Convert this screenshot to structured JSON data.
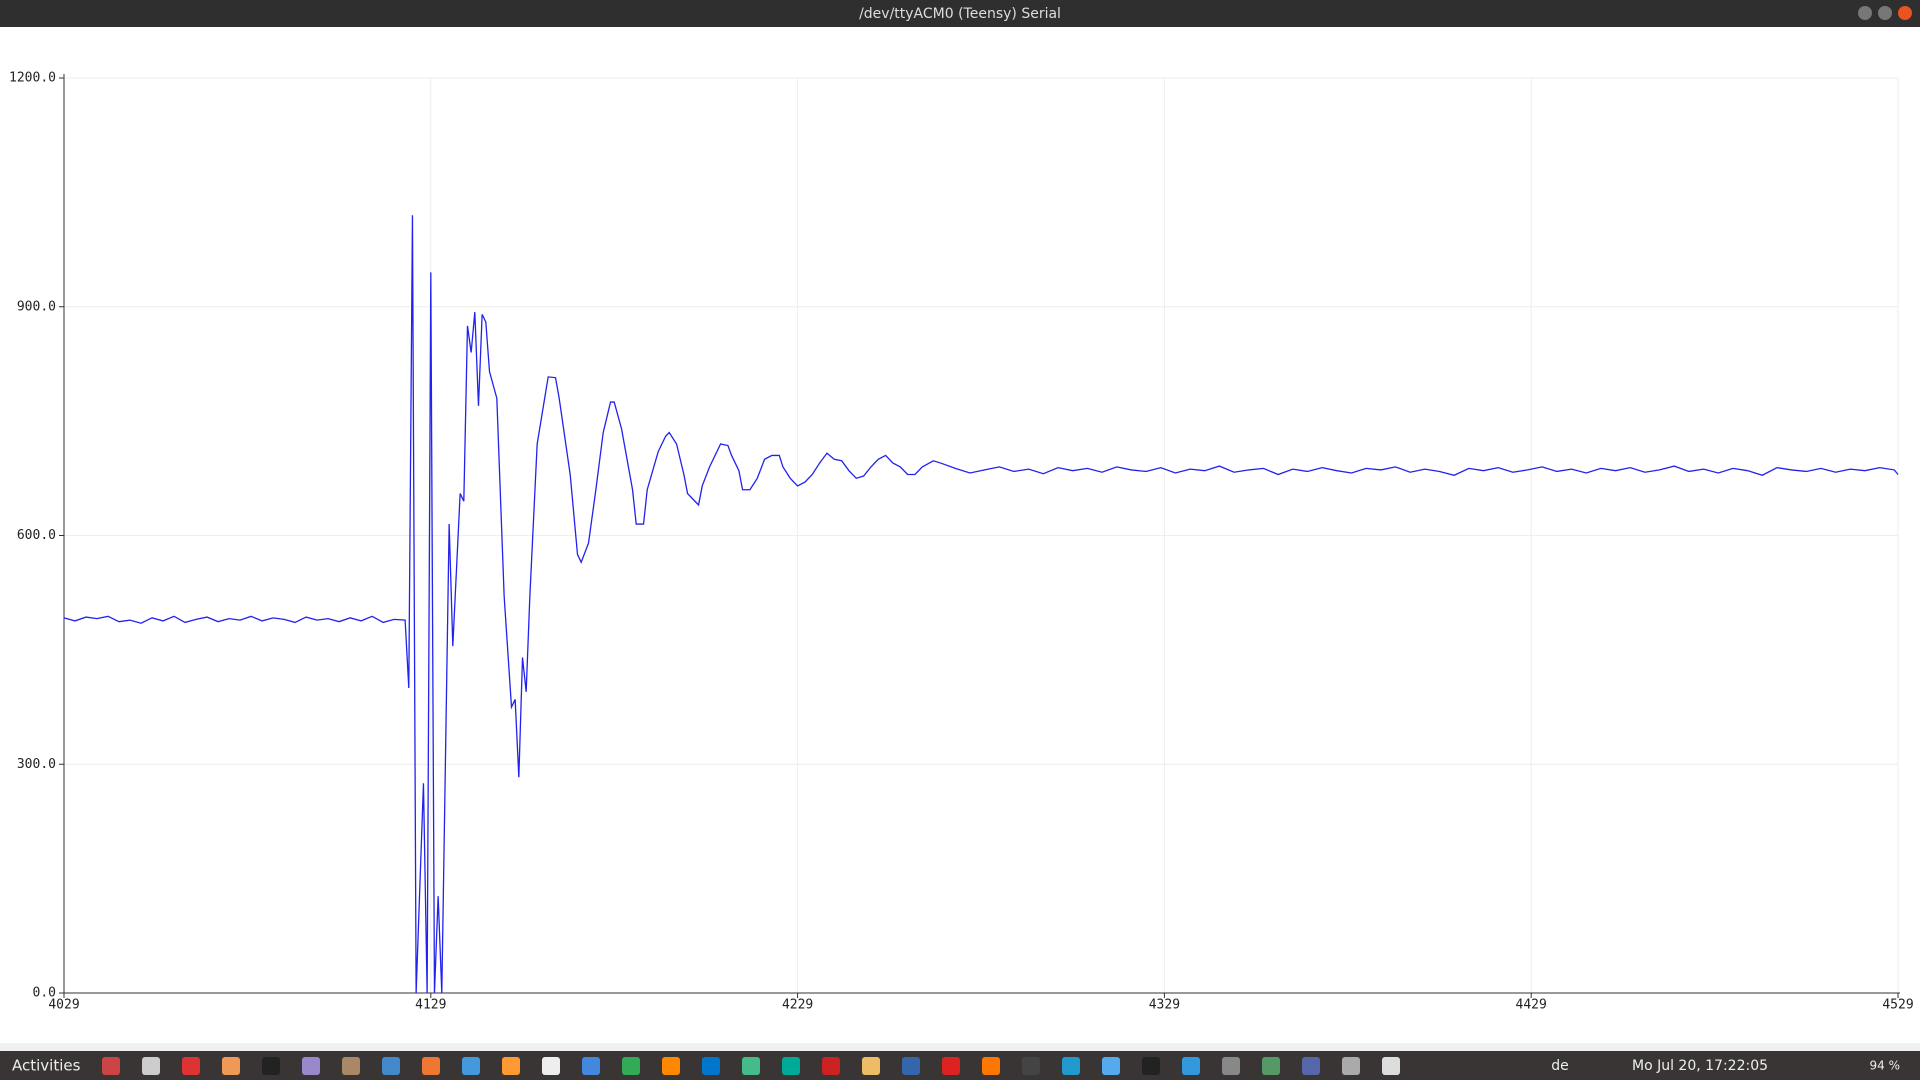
{
  "window": {
    "title": "/dev/ttyACM0 (Teensy) Serial"
  },
  "taskbar": {
    "activities": "Activities",
    "keyboard": "de",
    "clock": "Mo Jul 20, 17:22:05",
    "battery": "94 %"
  },
  "chart_data": {
    "type": "line",
    "x": [
      4029,
      4032,
      4035,
      4038,
      4041,
      4044,
      4047,
      4050,
      4053,
      4056,
      4059,
      4062,
      4065,
      4068,
      4071,
      4074,
      4077,
      4080,
      4083,
      4086,
      4089,
      4092,
      4095,
      4098,
      4101,
      4104,
      4107,
      4110,
      4113,
      4116,
      4119,
      4122,
      4123,
      4124,
      4125,
      4127,
      4128,
      4129,
      4130,
      4131,
      4132,
      4134,
      4135,
      4137,
      4138,
      4139,
      4140,
      4141,
      4142,
      4143,
      4144,
      4145,
      4147,
      4149,
      4151,
      4152,
      4153,
      4154,
      4155,
      4156,
      4158,
      4161,
      4163,
      4164,
      4167,
      4169,
      4170,
      4172,
      4174,
      4176,
      4178,
      4179,
      4181,
      4184,
      4185,
      4187,
      4188,
      4191,
      4193,
      4194,
      4196,
      4198,
      4199,
      4200,
      4202,
      4203,
      4205,
      4206,
      4208,
      4210,
      4211,
      4213,
      4214,
      4216,
      4218,
      4220,
      4222,
      4224,
      4225,
      4227,
      4229,
      4231,
      4233,
      4235,
      4237,
      4239,
      4241,
      4243,
      4245,
      4247,
      4249,
      4251,
      4253,
      4255,
      4257,
      4259,
      4261,
      4263,
      4266,
      4268,
      4272,
      4276,
      4280,
      4284,
      4288,
      4292,
      4296,
      4300,
      4304,
      4308,
      4312,
      4316,
      4320,
      4324,
      4328,
      4332,
      4336,
      4340,
      4344,
      4348,
      4352,
      4356,
      4360,
      4364,
      4368,
      4372,
      4376,
      4380,
      4384,
      4388,
      4392,
      4396,
      4400,
      4404,
      4408,
      4412,
      4416,
      4420,
      4424,
      4428,
      4432,
      4436,
      4440,
      4444,
      4448,
      4452,
      4456,
      4460,
      4464,
      4468,
      4472,
      4476,
      4480,
      4484,
      4488,
      4492,
      4496,
      4500,
      4504,
      4508,
      4512,
      4516,
      4520,
      4524,
      4528,
      4529
    ],
    "series": [
      {
        "color": "#2222ee",
        "values": [
          492,
          488,
          493,
          491,
          494,
          487,
          489,
          485,
          492,
          488,
          494,
          486,
          490,
          493,
          487,
          491,
          489,
          494,
          488,
          492,
          490,
          486,
          493,
          489,
          491,
          487,
          492,
          488,
          494,
          486,
          490,
          489,
          400,
          1020,
          0,
          275,
          0,
          945,
          0,
          127,
          0,
          615,
          455,
          655,
          645,
          875,
          840,
          893,
          770,
          890,
          880,
          815,
          780,
          520,
          375,
          385,
          283,
          440,
          395,
          520,
          720,
          808,
          807,
          780,
          680,
          575,
          565,
          590,
          660,
          735,
          775,
          775,
          740,
          660,
          615,
          615,
          660,
          710,
          730,
          735,
          720,
          680,
          655,
          650,
          640,
          665,
          690,
          700,
          720,
          718,
          705,
          685,
          660,
          660,
          675,
          700,
          705,
          705,
          690,
          675,
          665,
          670,
          680,
          695,
          708,
          700,
          698,
          685,
          675,
          678,
          690,
          700,
          705,
          695,
          690,
          680,
          680,
          690,
          698,
          695,
          688,
          682,
          686,
          690,
          684,
          687,
          681,
          689,
          685,
          688,
          683,
          690,
          686,
          684,
          689,
          682,
          687,
          685,
          691,
          683,
          686,
          688,
          680,
          687,
          684,
          689,
          685,
          682,
          688,
          686,
          690,
          683,
          687,
          684,
          679,
          688,
          685,
          689,
          683,
          686,
          690,
          684,
          687,
          682,
          688,
          685,
          689,
          683,
          686,
          691,
          684,
          687,
          682,
          688,
          685,
          679,
          689,
          686,
          684,
          688,
          683,
          687,
          685,
          689,
          686,
          680
        ]
      }
    ],
    "xlim": [
      4029,
      4529
    ],
    "xticks": [
      4029,
      4129,
      4229,
      4329,
      4429,
      4529
    ],
    "ylim": [
      0,
      1200
    ],
    "yticks": [
      {
        "value": 0,
        "label": "0.0"
      },
      {
        "value": 300,
        "label": "300.0"
      },
      {
        "value": 600,
        "label": "600.0"
      },
      {
        "value": 900,
        "label": "900.0"
      },
      {
        "value": 1200,
        "label": "1200.0"
      }
    ],
    "grid": true
  }
}
